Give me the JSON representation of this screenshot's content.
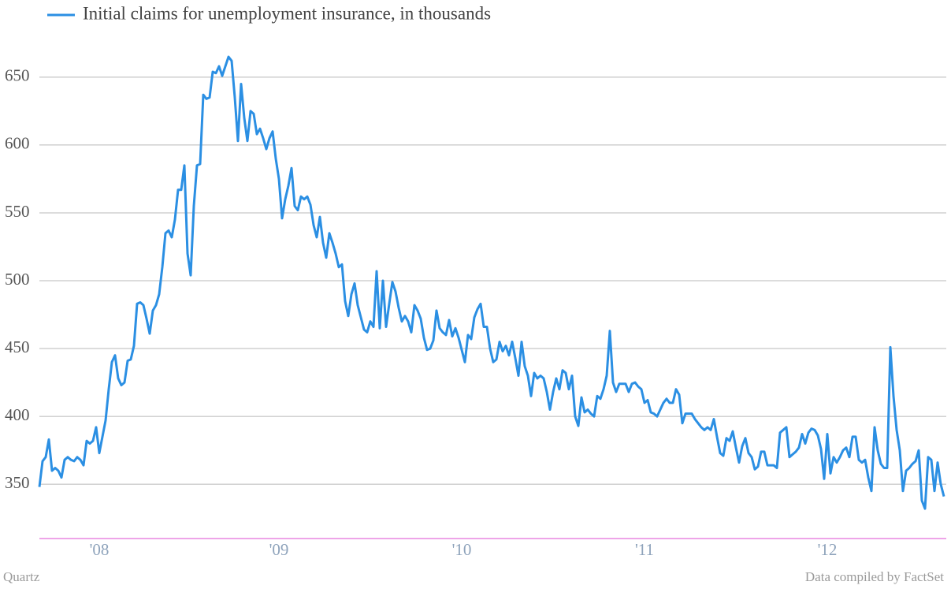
{
  "chart_data": {
    "type": "line",
    "legend": "top-left",
    "grid": true,
    "credit": "Quartz",
    "source": "Data compiled by FactSet",
    "ylim": [
      310,
      672
    ],
    "yticks": [
      350,
      400,
      450,
      500,
      550,
      600,
      650
    ],
    "categories": [
      null,
      null,
      null,
      null,
      null,
      null,
      null,
      null,
      null,
      null,
      null,
      null,
      null,
      null,
      null,
      null,
      null,
      null,
      null,
      "'08",
      null,
      null,
      null,
      null,
      null,
      null,
      null,
      null,
      null,
      null,
      null,
      null,
      null,
      null,
      null,
      null,
      null,
      null,
      null,
      null,
      null,
      null,
      null,
      null,
      null,
      null,
      null,
      null,
      null,
      null,
      null,
      null,
      null,
      null,
      null,
      null,
      null,
      null,
      null,
      null,
      null,
      null,
      null,
      null,
      null,
      null,
      null,
      null,
      null,
      null,
      null,
      null,
      null,
      null,
      null,
      null,
      "'09",
      null,
      null,
      null,
      null,
      null,
      null,
      null,
      null,
      null,
      null,
      null,
      null,
      null,
      null,
      null,
      null,
      null,
      null,
      null,
      null,
      null,
      null,
      null,
      null,
      null,
      null,
      null,
      null,
      null,
      null,
      null,
      null,
      null,
      null,
      null,
      null,
      null,
      null,
      null,
      null,
      null,
      null,
      null,
      null,
      null,
      null,
      null,
      null,
      null,
      null,
      null,
      null,
      null,
      null,
      null,
      null,
      null,
      "'10",
      null,
      null,
      null,
      null,
      null,
      null,
      null,
      null,
      null,
      null,
      null,
      null,
      null,
      null,
      null,
      null,
      null,
      null,
      null,
      null,
      null,
      null,
      null,
      null,
      null,
      null,
      null,
      null,
      null,
      null,
      null,
      null,
      null,
      null,
      null,
      null,
      null,
      null,
      null,
      null,
      null,
      null,
      null,
      null,
      null,
      null,
      null,
      null,
      null,
      null,
      null,
      null,
      null,
      null,
      null,
      null,
      null,
      "'11",
      null,
      null,
      null,
      null,
      null,
      null,
      null,
      null,
      null,
      null,
      null,
      null,
      null,
      null,
      null,
      null,
      null,
      null,
      null,
      null,
      null,
      null,
      null,
      null,
      null,
      null,
      null,
      null,
      null,
      null,
      null,
      null,
      null,
      null,
      null,
      null,
      null,
      null,
      null,
      null,
      null,
      null,
      null,
      null,
      null,
      null,
      null,
      null,
      null,
      null,
      null,
      null,
      null,
      null,
      null,
      null,
      null,
      "'12",
      null,
      null,
      null,
      null,
      null,
      null,
      null,
      null,
      null,
      null,
      null,
      null,
      null,
      null,
      null,
      null,
      null,
      null,
      null,
      null,
      null,
      null,
      null,
      null,
      null,
      null,
      null,
      null,
      null,
      null,
      null,
      null,
      null,
      null,
      null,
      null,
      null
    ],
    "series": [
      {
        "name": "Initial claims for unemployment insurance, in thousands",
        "color": "#2b8fe3",
        "values": [
          348,
          367,
          370,
          383,
          360,
          362,
          360,
          355,
          368,
          370,
          368,
          367,
          370,
          368,
          364,
          382,
          380,
          382,
          392,
          373,
          385,
          397,
          420,
          440,
          445,
          428,
          423,
          425,
          441,
          442,
          452,
          483,
          484,
          482,
          472,
          461,
          478,
          482,
          490,
          510,
          535,
          537,
          532,
          545,
          567,
          567,
          585,
          520,
          504,
          555,
          585,
          586,
          637,
          634,
          635,
          654,
          653,
          658,
          651,
          658,
          665,
          662,
          635,
          603,
          645,
          620,
          603,
          625,
          623,
          608,
          612,
          605,
          597,
          605,
          610,
          590,
          575,
          546,
          560,
          570,
          583,
          555,
          552,
          562,
          560,
          562,
          556,
          541,
          532,
          547,
          528,
          517,
          535,
          528,
          520,
          510,
          512,
          485,
          474,
          490,
          498,
          482,
          473,
          464,
          462,
          470,
          466,
          507,
          465,
          500,
          466,
          483,
          499,
          492,
          480,
          470,
          474,
          470,
          462,
          482,
          478,
          472,
          458,
          449,
          450,
          456,
          478,
          465,
          462,
          460,
          471,
          459,
          465,
          458,
          449,
          440,
          460,
          457,
          473,
          479,
          483,
          466,
          466,
          450,
          440,
          442,
          455,
          448,
          452,
          445,
          455,
          443,
          430,
          455,
          437,
          430,
          415,
          432,
          428,
          430,
          428,
          418,
          405,
          418,
          428,
          420,
          434,
          432,
          420,
          430,
          400,
          393,
          414,
          403,
          405,
          402,
          400,
          415,
          413,
          420,
          430,
          463,
          425,
          418,
          424,
          424,
          424,
          418,
          424,
          425,
          422,
          420,
          410,
          412,
          403,
          402,
          400,
          405,
          410,
          413,
          410,
          410,
          420,
          416,
          395,
          402,
          402,
          402,
          398,
          395,
          392,
          390,
          392,
          390,
          398,
          385,
          373,
          371,
          384,
          382,
          389,
          377,
          366,
          378,
          384,
          373,
          370,
          361,
          363,
          374,
          374,
          364,
          364,
          364,
          362,
          388,
          390,
          392,
          370,
          372,
          374,
          377,
          387,
          380,
          388,
          391,
          390,
          386,
          376,
          354,
          387,
          358,
          370,
          366,
          370,
          375,
          377,
          370,
          385,
          385,
          368,
          366,
          368,
          355,
          345,
          392,
          375,
          365,
          362,
          362,
          451,
          415,
          390,
          375,
          345,
          360,
          362,
          365,
          367,
          375,
          338,
          332,
          370,
          368,
          345,
          366,
          350,
          341
        ]
      }
    ]
  }
}
